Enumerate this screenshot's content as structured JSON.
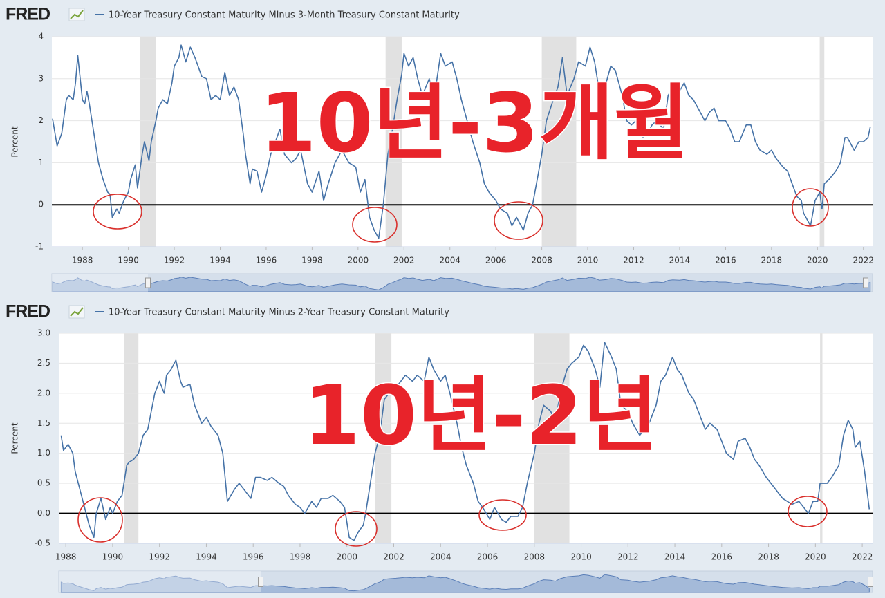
{
  "chart_data": [
    {
      "type": "line",
      "logo": "FRED",
      "y_label": "Percent",
      "annotation": "10년-3개월",
      "x": [
        1986.7,
        1986.9,
        1987.1,
        1987.3,
        1987.4,
        1987.6,
        1987.7,
        1987.8,
        1988.0,
        1988.1,
        1988.2,
        1988.3,
        1988.5,
        1988.7,
        1988.9,
        1989.1,
        1989.2,
        1989.3,
        1989.5,
        1989.6,
        1989.8,
        1990.0,
        1990.1,
        1990.3,
        1990.4,
        1990.6,
        1990.7,
        1990.9,
        1991.0,
        1991.2,
        1991.3,
        1991.5,
        1991.7,
        1991.9,
        1992.0,
        1992.2,
        1992.3,
        1992.5,
        1992.7,
        1992.9,
        1993.2,
        1993.4,
        1993.6,
        1993.8,
        1994.0,
        1994.2,
        1994.4,
        1994.6,
        1994.8,
        1995.0,
        1995.1,
        1995.3,
        1995.4,
        1995.6,
        1995.8,
        1996.0,
        1996.2,
        1996.4,
        1996.6,
        1996.8,
        1997.1,
        1997.3,
        1997.5,
        1997.8,
        1998.0,
        1998.3,
        1998.5,
        1998.7,
        1999.0,
        1999.3,
        1999.6,
        1999.9,
        2000.1,
        2000.3,
        2000.5,
        2000.7,
        2000.9,
        2001.1,
        2001.3,
        2001.5,
        2001.7,
        2001.9,
        2002.0,
        2002.2,
        2002.4,
        2002.6,
        2002.8,
        2003.1,
        2003.3,
        2003.6,
        2003.8,
        2004.1,
        2004.3,
        2004.5,
        2004.8,
        2005.0,
        2005.3,
        2005.5,
        2005.7,
        2006.0,
        2006.2,
        2006.5,
        2006.7,
        2006.9,
        2007.2,
        2007.4,
        2007.6,
        2007.8,
        2008.0,
        2008.2,
        2008.5,
        2008.7,
        2008.9,
        2009.1,
        2009.4,
        2009.6,
        2009.9,
        2010.1,
        2010.3,
        2010.5,
        2010.8,
        2011.0,
        2011.2,
        2011.5,
        2011.7,
        2011.9,
        2012.1,
        2012.4,
        2012.6,
        2012.8,
        2013.0,
        2013.3,
        2013.5,
        2013.7,
        2014.0,
        2014.2,
        2014.4,
        2014.6,
        2014.8,
        2015.1,
        2015.3,
        2015.5,
        2015.7,
        2016.0,
        2016.2,
        2016.4,
        2016.6,
        2016.9,
        2017.1,
        2017.3,
        2017.5,
        2017.8,
        2018.0,
        2018.2,
        2018.5,
        2018.7,
        2018.9,
        2019.1,
        2019.3,
        2019.4,
        2019.7,
        2019.9,
        2020.1,
        2020.2,
        2020.3,
        2020.5,
        2020.8,
        2021.0,
        2021.2,
        2021.3,
        2021.6,
        2021.8,
        2022.0,
        2022.2,
        2022.3
      ],
      "series": [
        {
          "name": "10-Year Treasury Constant Maturity Minus 3-Month Treasury Constant Maturity",
          "color": "#4572a7",
          "values": [
            2.05,
            1.4,
            1.7,
            2.5,
            2.6,
            2.5,
            2.9,
            3.55,
            2.5,
            2.4,
            2.7,
            2.4,
            1.7,
            1.0,
            0.6,
            0.3,
            0.25,
            -0.3,
            -0.1,
            -0.2,
            0.1,
            0.3,
            0.6,
            0.95,
            0.4,
            1.2,
            1.5,
            1.05,
            1.5,
            2.0,
            2.3,
            2.5,
            2.4,
            2.9,
            3.3,
            3.5,
            3.8,
            3.4,
            3.75,
            3.5,
            3.05,
            3.0,
            2.5,
            2.6,
            2.5,
            3.15,
            2.6,
            2.8,
            2.5,
            1.7,
            1.2,
            0.5,
            0.85,
            0.8,
            0.3,
            0.7,
            1.2,
            1.5,
            1.8,
            1.2,
            1.0,
            1.1,
            1.3,
            0.5,
            0.3,
            0.8,
            0.1,
            0.5,
            1.0,
            1.3,
            1.0,
            0.9,
            0.3,
            0.6,
            -0.3,
            -0.6,
            -0.8,
            0.0,
            1.2,
            1.8,
            2.5,
            3.1,
            3.6,
            3.3,
            3.5,
            3.0,
            2.6,
            3.0,
            2.5,
            3.6,
            3.3,
            3.4,
            3.0,
            2.5,
            1.9,
            1.5,
            1.0,
            0.5,
            0.3,
            0.1,
            -0.1,
            -0.2,
            -0.5,
            -0.3,
            -0.6,
            -0.2,
            0.0,
            0.6,
            1.2,
            2.0,
            2.5,
            2.8,
            3.5,
            2.6,
            3.0,
            3.4,
            3.3,
            3.75,
            3.4,
            2.7,
            2.9,
            3.3,
            3.2,
            2.6,
            2.0,
            1.9,
            2.0,
            1.6,
            1.7,
            1.9,
            2.0,
            1.8,
            2.6,
            2.8,
            2.7,
            2.9,
            2.6,
            2.5,
            2.3,
            2.0,
            2.2,
            2.3,
            2.0,
            2.0,
            1.8,
            1.5,
            1.5,
            1.9,
            1.9,
            1.5,
            1.3,
            1.2,
            1.3,
            1.1,
            0.9,
            0.8,
            0.5,
            0.2,
            0.1,
            -0.2,
            -0.5,
            0.1,
            0.3,
            -0.1,
            0.5,
            0.6,
            0.8,
            1.0,
            1.6,
            1.6,
            1.3,
            1.5,
            1.5,
            1.6,
            1.85
          ]
        }
      ],
      "recessions": [
        [
          1990.5,
          1991.2
        ],
        [
          2001.2,
          2001.9
        ],
        [
          2008.0,
          2009.5
        ],
        [
          2020.1,
          2020.3
        ]
      ],
      "xlim": [
        1986.67,
        2022.4
      ],
      "ylim": [
        -1,
        4
      ],
      "xticks": [
        1988,
        1990,
        1992,
        1994,
        1996,
        1998,
        2000,
        2002,
        2004,
        2006,
        2008,
        2010,
        2012,
        2014,
        2016,
        2018,
        2020,
        2022
      ],
      "yticks": [
        -1,
        0,
        1,
        2,
        3,
        4
      ],
      "grid": true,
      "zero_line": true
    },
    {
      "type": "line",
      "logo": "FRED",
      "y_label": "Percent",
      "annotation": "10년-2년",
      "x": [
        1987.8,
        1987.9,
        1988.1,
        1988.3,
        1988.4,
        1988.6,
        1988.8,
        1989.0,
        1989.2,
        1989.3,
        1989.5,
        1989.7,
        1989.9,
        1990.0,
        1990.2,
        1990.4,
        1990.6,
        1990.7,
        1990.9,
        1991.1,
        1991.3,
        1991.5,
        1991.6,
        1991.8,
        1992.0,
        1992.2,
        1992.3,
        1992.5,
        1992.7,
        1992.9,
        1993.0,
        1993.3,
        1993.5,
        1993.8,
        1994.0,
        1994.2,
        1994.5,
        1994.7,
        1994.9,
        1995.2,
        1995.4,
        1995.6,
        1995.9,
        1996.1,
        1996.3,
        1996.6,
        1996.8,
        1997.1,
        1997.3,
        1997.5,
        1997.8,
        1998.0,
        1998.2,
        1998.5,
        1998.7,
        1998.9,
        1999.2,
        1999.4,
        1999.7,
        1999.9,
        2000.1,
        2000.3,
        2000.5,
        2000.7,
        2000.8,
        2001.0,
        2001.2,
        2001.4,
        2001.6,
        2001.8,
        2002.1,
        2002.3,
        2002.5,
        2002.8,
        2003.0,
        2003.3,
        2003.5,
        2003.7,
        2004.0,
        2004.2,
        2004.4,
        2004.7,
        2004.9,
        2005.1,
        2005.4,
        2005.6,
        2005.8,
        2006.1,
        2006.3,
        2006.6,
        2006.8,
        2007.0,
        2007.3,
        2007.5,
        2007.7,
        2008.0,
        2008.2,
        2008.4,
        2008.7,
        2008.9,
        2009.1,
        2009.4,
        2009.6,
        2009.9,
        2010.1,
        2010.3,
        2010.6,
        2010.8,
        2011.0,
        2011.3,
        2011.5,
        2011.7,
        2012.0,
        2012.2,
        2012.5,
        2012.7,
        2012.9,
        2013.2,
        2013.4,
        2013.6,
        2013.9,
        2014.1,
        2014.3,
        2014.6,
        2014.8,
        2015.0,
        2015.3,
        2015.5,
        2015.8,
        2016.0,
        2016.2,
        2016.5,
        2016.7,
        2017.0,
        2017.2,
        2017.4,
        2017.6,
        2017.9,
        2018.1,
        2018.3,
        2018.6,
        2018.8,
        2019.0,
        2019.3,
        2019.5,
        2019.7,
        2019.9,
        2020.1,
        2020.2,
        2020.5,
        2020.7,
        2021.0,
        2021.2,
        2021.4,
        2021.6,
        2021.7,
        2021.9,
        2022.1,
        2022.3
      ],
      "series": [
        {
          "name": "10-Year Treasury Constant Maturity Minus 2-Year Treasury Constant Maturity",
          "color": "#4572a7",
          "values": [
            1.3,
            1.05,
            1.15,
            1.0,
            0.7,
            0.4,
            0.1,
            -0.2,
            -0.4,
            0.0,
            0.25,
            -0.1,
            0.1,
            0.0,
            0.2,
            0.3,
            0.8,
            0.85,
            0.9,
            1.0,
            1.3,
            1.4,
            1.6,
            2.0,
            2.2,
            2.0,
            2.3,
            2.4,
            2.55,
            2.2,
            2.1,
            2.15,
            1.8,
            1.5,
            1.6,
            1.45,
            1.3,
            1.0,
            0.2,
            0.4,
            0.5,
            0.4,
            0.25,
            0.6,
            0.6,
            0.55,
            0.6,
            0.5,
            0.45,
            0.3,
            0.15,
            0.1,
            0.0,
            0.2,
            0.1,
            0.25,
            0.25,
            0.3,
            0.2,
            0.1,
            -0.4,
            -0.45,
            -0.3,
            -0.2,
            0.0,
            0.5,
            1.0,
            1.3,
            1.9,
            2.0,
            2.1,
            2.2,
            2.3,
            2.2,
            2.3,
            2.2,
            2.6,
            2.4,
            2.2,
            2.3,
            2.0,
            1.5,
            1.1,
            0.8,
            0.5,
            0.2,
            0.1,
            -0.1,
            0.1,
            -0.1,
            -0.15,
            -0.05,
            -0.05,
            0.1,
            0.5,
            1.0,
            1.5,
            1.8,
            1.7,
            1.5,
            2.0,
            2.4,
            2.5,
            2.6,
            2.8,
            2.7,
            2.4,
            2.1,
            2.85,
            2.6,
            2.4,
            1.8,
            1.7,
            1.5,
            1.3,
            1.4,
            1.5,
            1.8,
            2.2,
            2.3,
            2.6,
            2.4,
            2.3,
            2.0,
            1.9,
            1.7,
            1.4,
            1.5,
            1.4,
            1.2,
            1.0,
            0.9,
            1.2,
            1.25,
            1.1,
            0.9,
            0.8,
            0.6,
            0.5,
            0.4,
            0.25,
            0.2,
            0.15,
            0.2,
            0.1,
            0.0,
            0.2,
            0.2,
            0.5,
            0.5,
            0.6,
            0.8,
            1.3,
            1.55,
            1.4,
            1.1,
            1.2,
            0.7,
            0.07
          ]
        }
      ],
      "recessions": [
        [
          1990.5,
          1991.1
        ],
        [
          2001.2,
          2001.9
        ],
        [
          2008.0,
          2009.5
        ],
        [
          2020.2,
          2020.3
        ]
      ],
      "xlim": [
        1987.7,
        2022.44
      ],
      "ylim": [
        -0.5,
        3
      ],
      "xticks": [
        1988,
        1990,
        1992,
        1994,
        1996,
        1998,
        2000,
        2002,
        2004,
        2006,
        2008,
        2010,
        2012,
        2014,
        2016,
        2018,
        2020,
        2022
      ],
      "yticks": [
        -0.5,
        {
          "value": 0,
          "label": "0.0"
        },
        0.5,
        {
          "value": 1,
          "label": "1.0"
        },
        1.5,
        {
          "value": 2,
          "label": "2.0"
        },
        2.5,
        {
          "value": 3,
          "label": "3.0"
        }
      ],
      "grid": true,
      "zero_line": true
    }
  ]
}
